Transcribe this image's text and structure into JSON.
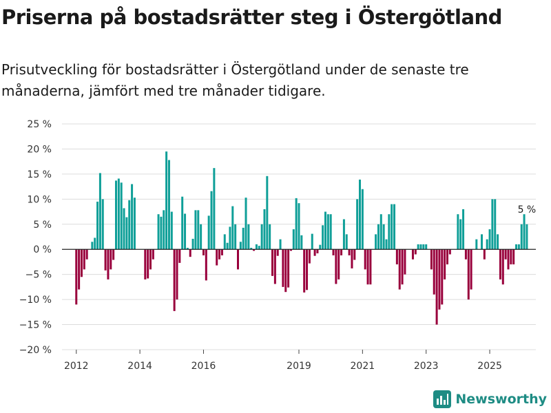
{
  "header": {
    "title": "Priserna på bostadsrätter steg i Östergötland",
    "subtitle": "Prisutveckling för bostadsrätter i Östergötland under de senaste tre månaderna, jämfört med tre månader tidigare."
  },
  "brand": {
    "name": "Newsworthy"
  },
  "colors": {
    "positive": "#0f9f98",
    "negative": "#99003c",
    "brand": "#1e8c84"
  },
  "chart_data": {
    "type": "bar",
    "title": "Priserna på bostadsrätter steg i Östergötland",
    "xlabel": "",
    "ylabel": "",
    "ylim": [
      -20,
      25
    ],
    "xlim": [
      2011.55,
      2026.45
    ],
    "y_ticks": [
      25,
      20,
      15,
      10,
      5,
      0,
      -5,
      -10,
      -15,
      -20
    ],
    "y_tick_labels": [
      "25 %",
      "20 %",
      "15 %",
      "10 %",
      "5 %",
      "0 %",
      "−5 %",
      "−10 %",
      "−15 %",
      "−20 %"
    ],
    "x_ticks": [
      2012,
      2014,
      2016,
      2019,
      2021,
      2023,
      2025
    ],
    "x_tick_labels": [
      "2012",
      "2014",
      "2016",
      "2019",
      "2021",
      "2023",
      "2025"
    ],
    "start_year": 2012,
    "step_months": 1,
    "annotation": {
      "label": "5 %",
      "target": "last"
    },
    "values": [
      -11,
      -8,
      -5.5,
      -4,
      -2,
      0,
      1.5,
      2.3,
      9.5,
      15.2,
      10,
      -4.2,
      -6,
      -4,
      -2.1,
      13.7,
      14.1,
      13.3,
      8.2,
      6.4,
      9.8,
      13,
      10.3,
      0,
      0,
      0,
      -6,
      -5.8,
      -4,
      -2,
      0,
      7,
      6.5,
      7.8,
      19.5,
      17.8,
      7.5,
      -12.3,
      -10,
      -2.7,
      10.5,
      7.1,
      0.3,
      -1.5,
      2.1,
      7.8,
      7.8,
      5,
      -1.2,
      -6.2,
      6.7,
      11.6,
      16.2,
      -3.2,
      -2,
      -1.2,
      3,
      1.3,
      4.5,
      8.6,
      5,
      -4,
      1.5,
      4.3,
      10.3,
      5,
      0.3,
      -0.3,
      1,
      0.7,
      5,
      8,
      14.6,
      5,
      -5.3,
      -6.9,
      -1.3,
      2,
      -7.5,
      -8.5,
      -7.6,
      -0.3,
      4,
      10.2,
      9.2,
      2.8,
      -8.6,
      -8.1,
      -2.8,
      3.1,
      -1.3,
      -0.8,
      0.9,
      4.8,
      7.5,
      7,
      7,
      -1.2,
      -6.9,
      -6,
      -1.2,
      6,
      3,
      -1.2,
      -3.8,
      -2.1,
      10,
      13.9,
      12,
      -4,
      -7,
      -7,
      0,
      3,
      5,
      7,
      5,
      2,
      7,
      9,
      9,
      -3,
      -8,
      -7,
      -5,
      0,
      0,
      -2,
      -1,
      1,
      1,
      1,
      1,
      0,
      -4,
      -9,
      -15,
      -12,
      -11,
      -6,
      -3,
      -1,
      0,
      0,
      7,
      6,
      8,
      -2,
      -10,
      -8,
      0,
      2,
      0,
      3,
      -2,
      2,
      4,
      10,
      10,
      3,
      -6,
      -7,
      -2,
      -4,
      -3,
      -3,
      1,
      1,
      5,
      7,
      5
    ]
  }
}
